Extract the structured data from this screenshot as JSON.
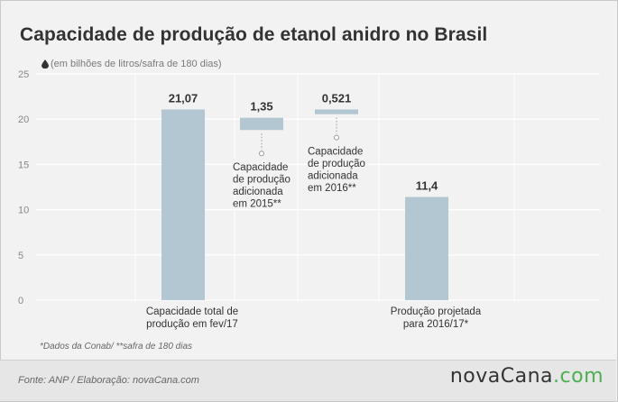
{
  "header": {
    "title": "Capacidade de produção de etanol anidro no Brasil",
    "subtitle": "(em bilhões de litros/safra de 180 dias)"
  },
  "note": "*Dados da Conab/ **safra de 180 dias",
  "footer": {
    "source": "Fonte: ANP / Elaboração: novaCana.com",
    "logo_main": "novaCana",
    "logo_suffix": ".com"
  },
  "colors": {
    "bar": "#b3c7d2",
    "background": "#f2f2f2",
    "grid": "#ffffff"
  },
  "chart_data": {
    "type": "bar",
    "subtype": "waterfall",
    "ylim": [
      0,
      25
    ],
    "yticks": [
      0,
      5,
      10,
      15,
      20,
      25
    ],
    "grid": true,
    "bars": [
      {
        "value": 21.07,
        "label": "21,07",
        "base": 0,
        "category": [
          "Capacidade total de",
          "produção em fev/17"
        ]
      },
      {
        "value": 1.35,
        "label": "1,35",
        "base": 18.8,
        "category": [
          "Capacidade",
          "de produção",
          "adicionada",
          "em 2015**"
        ]
      },
      {
        "value": 0.521,
        "label": "0,521",
        "base": 20.55,
        "category": [
          "Capacidade",
          "de produção",
          "adicionada",
          "em 2016**"
        ]
      },
      {
        "value": 11.4,
        "label": "11,4",
        "base": 0,
        "category": [
          "Produção projetada",
          "para 2016/17*"
        ]
      }
    ]
  }
}
